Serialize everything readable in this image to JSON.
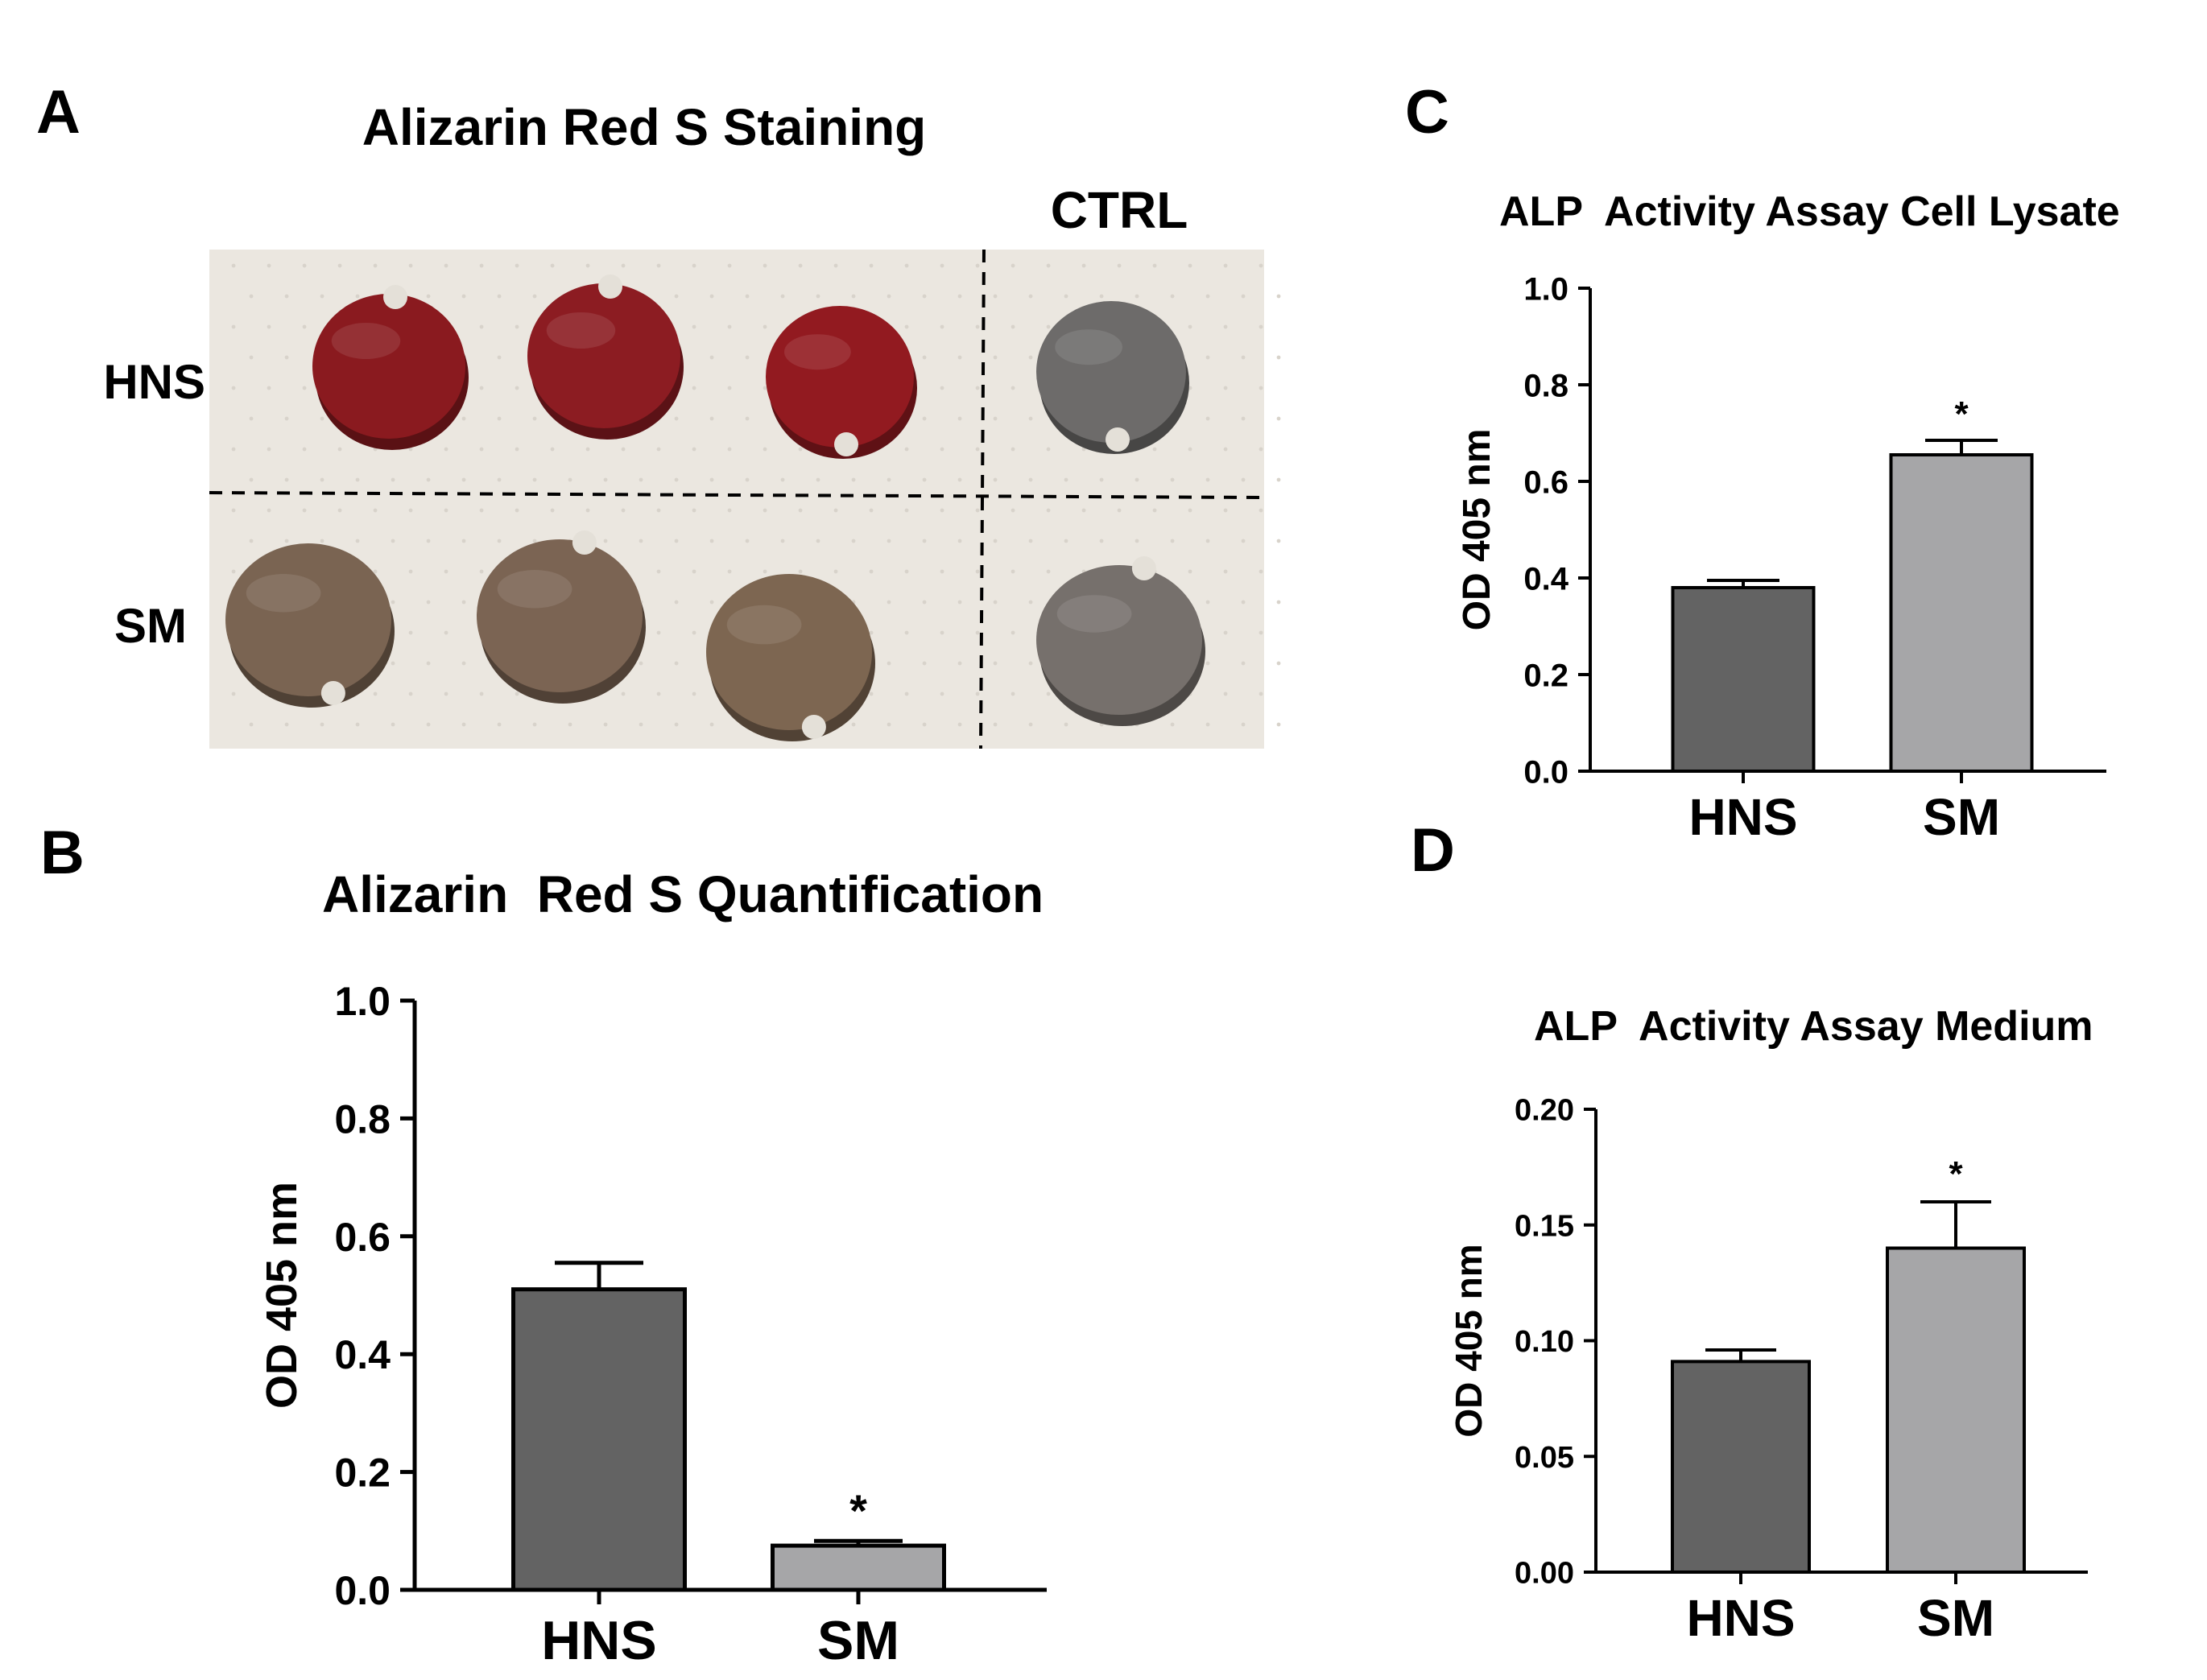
{
  "panel_a": {
    "letter": "A",
    "title": "Alizarin Red S Staining",
    "column_label_ctrl": "CTRL",
    "row_labels": [
      "HNS",
      "SM"
    ],
    "rows": [
      {
        "label": "HNS",
        "discs": [
          "stained",
          "stained",
          "stained",
          "unstained"
        ],
        "disc_colors": [
          "#8a1a1f",
          "#8c1c22",
          "#921a20",
          "#6d6b6a"
        ]
      },
      {
        "label": "SM",
        "discs": [
          "unstained",
          "unstained",
          "unstained",
          "unstained"
        ],
        "disc_colors": [
          "#7a6452",
          "#7b6453",
          "#7d6651",
          "#76706c"
        ]
      }
    ]
  },
  "colors": {
    "hns_bar": "#636363",
    "sm_bar": "#a6a6a8",
    "axis": "#000000",
    "photo_bg": "#ebe7e0"
  },
  "chart_data": [
    {
      "panel": "B",
      "type": "bar",
      "title": "Alizarin  Red S Quantification",
      "xlabel": "",
      "ylabel": "OD 405 nm",
      "categories": [
        "HNS",
        "SM"
      ],
      "values": [
        0.51,
        0.075
      ],
      "error": [
        0.045,
        0.008
      ],
      "significance": [
        "",
        "*"
      ],
      "ylim": [
        0,
        1.0
      ],
      "yticks": [
        0.0,
        0.2,
        0.4,
        0.6,
        0.8,
        1.0
      ],
      "ytick_labels": [
        "0.0",
        "0.2",
        "0.4",
        "0.6",
        "0.8",
        "1.0"
      ],
      "grid": false
    },
    {
      "panel": "C",
      "type": "bar",
      "title": "ALP  Activity Assay Cell Lysate",
      "xlabel": "",
      "ylabel": "OD 405 nm",
      "categories": [
        "HNS",
        "SM"
      ],
      "values": [
        0.38,
        0.655
      ],
      "error": [
        0.015,
        0.03
      ],
      "significance": [
        "",
        "*"
      ],
      "ylim": [
        0,
        1.0
      ],
      "yticks": [
        0.0,
        0.2,
        0.4,
        0.6,
        0.8,
        1.0
      ],
      "ytick_labels": [
        "0.0",
        "0.2",
        "0.4",
        "0.6",
        "0.8",
        "1.0"
      ],
      "grid": false
    },
    {
      "panel": "D",
      "type": "bar",
      "title": "ALP  Activity Assay Medium",
      "xlabel": "",
      "ylabel": "OD 405 nm",
      "categories": [
        "HNS",
        "SM"
      ],
      "values": [
        0.091,
        0.14
      ],
      "error": [
        0.005,
        0.02
      ],
      "significance": [
        "",
        "*"
      ],
      "ylim": [
        0,
        0.2
      ],
      "yticks": [
        0.0,
        0.05,
        0.1,
        0.15,
        0.2
      ],
      "ytick_labels": [
        "0.00",
        "0.05",
        "0.10",
        "0.15",
        "0.20"
      ],
      "grid": false
    }
  ]
}
